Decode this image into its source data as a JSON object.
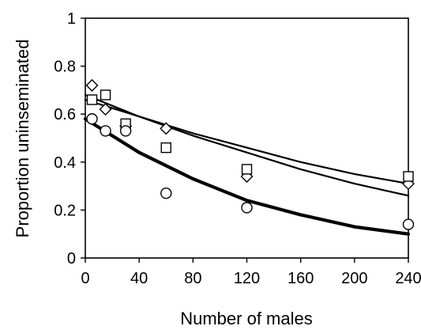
{
  "chart_data": {
    "type": "scatter",
    "title": "",
    "xlabel": "Number of males",
    "ylabel": "Proportion uninseminated",
    "xlim": [
      0,
      240
    ],
    "ylim": [
      0,
      1
    ],
    "xticks": [
      "0",
      "40",
      "80",
      "120",
      "160",
      "200",
      "240"
    ],
    "yticks": [
      "0",
      "0.2",
      "0.4",
      "0.6",
      "0.8",
      "1"
    ],
    "grid": false,
    "legend": "none",
    "box": true,
    "series": [
      {
        "marker": "diamond",
        "points": [
          {
            "x": 5,
            "y": 0.72
          },
          {
            "x": 15,
            "y": 0.62
          },
          {
            "x": 30,
            "y": 0.55
          },
          {
            "x": 60,
            "y": 0.54
          },
          {
            "x": 120,
            "y": 0.34
          },
          {
            "x": 240,
            "y": 0.31
          }
        ]
      },
      {
        "marker": "square",
        "points": [
          {
            "x": 5,
            "y": 0.66
          },
          {
            "x": 15,
            "y": 0.68
          },
          {
            "x": 30,
            "y": 0.56
          },
          {
            "x": 60,
            "y": 0.46
          },
          {
            "x": 120,
            "y": 0.37
          },
          {
            "x": 240,
            "y": 0.34
          }
        ]
      },
      {
        "marker": "circle",
        "points": [
          {
            "x": 5,
            "y": 0.58
          },
          {
            "x": 15,
            "y": 0.53
          },
          {
            "x": 30,
            "y": 0.53
          },
          {
            "x": 60,
            "y": 0.27
          },
          {
            "x": 120,
            "y": 0.21
          },
          {
            "x": 240,
            "y": 0.14
          }
        ]
      }
    ],
    "fit_curves": [
      {
        "style": "thin",
        "color": "#000000",
        "points": [
          [
            0,
            0.66
          ],
          [
            40,
            0.59
          ],
          [
            80,
            0.52
          ],
          [
            120,
            0.46
          ],
          [
            160,
            0.4
          ],
          [
            200,
            0.35
          ],
          [
            240,
            0.31
          ]
        ]
      },
      {
        "style": "thin",
        "color": "#000000",
        "points": [
          [
            0,
            0.68
          ],
          [
            40,
            0.59
          ],
          [
            80,
            0.51
          ],
          [
            120,
            0.44
          ],
          [
            160,
            0.37
          ],
          [
            200,
            0.31
          ],
          [
            240,
            0.26
          ]
        ]
      },
      {
        "style": "thick",
        "color": "#000000",
        "points": [
          [
            0,
            0.58
          ],
          [
            40,
            0.44
          ],
          [
            80,
            0.33
          ],
          [
            120,
            0.24
          ],
          [
            160,
            0.18
          ],
          [
            200,
            0.13
          ],
          [
            240,
            0.1
          ]
        ]
      }
    ]
  }
}
